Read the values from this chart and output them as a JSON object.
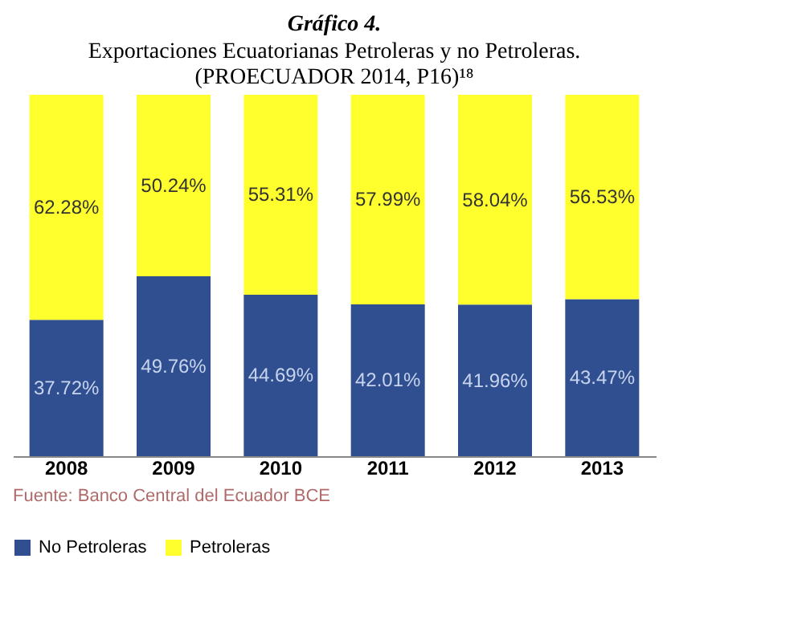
{
  "chart_data": {
    "type": "bar",
    "stacked": true,
    "title": "Gráfico 4.",
    "subtitle": "Exportaciones Ecuatorianas Petroleras y no Petroleras.",
    "annotations": [
      "(PROECUADOR 2014, P16)¹⁸",
      "Fuente: Banco Central del Ecuador BCE"
    ],
    "categories": [
      "2008",
      "2009",
      "2010",
      "2011",
      "2012",
      "2013"
    ],
    "series": [
      {
        "name": "No Petroleras",
        "color": "#2f4f91",
        "values": [
          37.72,
          49.76,
          44.69,
          42.01,
          41.96,
          43.47
        ],
        "value_labels": [
          "37.72%",
          "49.76%",
          "44.69%",
          "42.01%",
          "41.96%",
          "43.47%"
        ]
      },
      {
        "name": "Petroleras",
        "color": "#ffff2e",
        "values": [
          62.28,
          50.24,
          55.31,
          57.99,
          58.04,
          56.53
        ],
        "value_labels": [
          "62.28%",
          "50.24%",
          "55.31%",
          "57.99%",
          "58.04%",
          "56.53%"
        ]
      }
    ],
    "ylim": [
      0,
      100
    ],
    "tick_labels": "x",
    "legend": "bottom",
    "grid": false
  }
}
